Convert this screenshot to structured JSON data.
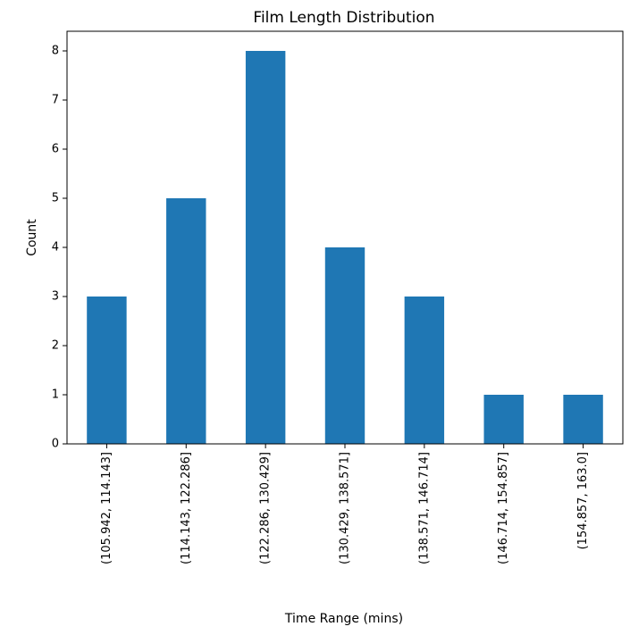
{
  "chart_data": {
    "type": "bar",
    "title": "Film Length Distribution",
    "xlabel": "Time Range (mins)",
    "ylabel": "Count",
    "categories": [
      "(105.942, 114.143]",
      "(114.143, 122.286]",
      "(122.286, 130.429]",
      "(130.429, 138.571]",
      "(138.571, 146.714]",
      "(146.714, 154.857]",
      "(154.857, 163.0]"
    ],
    "values": [
      3,
      5,
      8,
      4,
      3,
      1,
      1
    ],
    "ylim": [
      0,
      8.4
    ],
    "yticks": [
      0,
      1,
      2,
      3,
      4,
      5,
      6,
      7,
      8
    ],
    "grid": false,
    "bar_color": "#1f77b4"
  }
}
